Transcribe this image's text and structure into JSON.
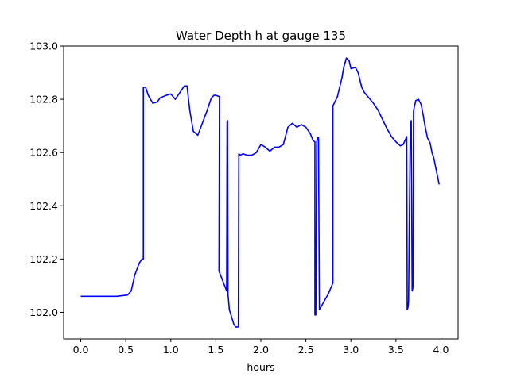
{
  "chart_data": {
    "type": "line",
    "title": "Water Depth h at gauge 135",
    "xlabel": "hours",
    "ylabel": "",
    "xlim": [
      -0.19,
      4.19
    ],
    "ylim": [
      101.9,
      103.0
    ],
    "grid": false,
    "x_ticks": [
      0.0,
      0.5,
      1.0,
      1.5,
      2.0,
      2.5,
      3.0,
      3.5,
      4.0
    ],
    "x_tick_labels": [
      "0.0",
      "0.5",
      "1.0",
      "1.5",
      "2.0",
      "2.5",
      "3.0",
      "3.5",
      "4.0"
    ],
    "y_ticks": [
      102.0,
      102.2,
      102.4,
      102.6,
      102.8,
      103.0
    ],
    "y_tick_labels": [
      "102.0",
      "102.2",
      "102.4",
      "102.6",
      "102.8",
      "103.0"
    ],
    "series": [
      {
        "color": "#0000ff",
        "x": [
          0.0,
          0.2,
          0.4,
          0.52,
          0.56,
          0.6,
          0.65,
          0.68,
          0.695,
          0.695,
          0.72,
          0.75,
          0.8,
          0.85,
          0.88,
          0.95,
          1.0,
          1.05,
          1.1,
          1.15,
          1.18,
          1.21,
          1.25,
          1.3,
          1.35,
          1.4,
          1.45,
          1.48,
          1.5,
          1.54,
          1.535,
          1.58,
          1.62,
          1.625,
          1.63,
          1.635,
          1.64,
          1.65,
          1.7,
          1.72,
          1.75,
          1.755,
          1.755,
          1.77,
          1.8,
          1.85,
          1.9,
          1.95,
          2.0,
          2.05,
          2.1,
          2.15,
          2.2,
          2.25,
          2.3,
          2.35,
          2.4,
          2.45,
          2.5,
          2.55,
          2.58,
          2.6,
          2.6,
          2.61,
          2.62,
          2.63,
          2.64,
          2.65,
          2.66,
          2.7,
          2.75,
          2.8,
          2.8,
          2.85,
          2.9,
          2.92,
          2.95,
          2.98,
          3.0,
          3.05,
          3.08,
          3.12,
          3.15,
          3.2,
          3.25,
          3.3,
          3.35,
          3.4,
          3.45,
          3.5,
          3.55,
          3.58,
          3.6,
          3.62,
          3.625,
          3.635,
          3.64,
          3.66,
          3.67,
          3.68,
          3.69,
          3.695,
          3.7,
          3.72,
          3.75,
          3.78,
          3.8,
          3.82,
          3.85,
          3.88,
          3.9,
          3.92,
          3.95,
          3.98
        ],
        "y": [
          102.06,
          102.06,
          102.06,
          102.065,
          102.08,
          102.14,
          102.185,
          102.2,
          102.2,
          102.845,
          102.845,
          102.815,
          102.785,
          102.79,
          102.805,
          102.815,
          102.82,
          102.8,
          102.825,
          102.85,
          102.85,
          102.76,
          102.68,
          102.665,
          102.71,
          102.755,
          102.805,
          102.815,
          102.815,
          102.81,
          102.155,
          102.115,
          102.08,
          102.715,
          102.72,
          102.065,
          102.05,
          102.01,
          101.955,
          101.945,
          101.945,
          102.595,
          102.595,
          102.59,
          102.595,
          102.59,
          102.59,
          102.6,
          102.63,
          102.62,
          102.605,
          102.62,
          102.62,
          102.63,
          102.695,
          102.71,
          102.695,
          102.705,
          102.695,
          102.67,
          102.645,
          102.64,
          101.99,
          101.99,
          102.64,
          102.655,
          102.655,
          102.01,
          102.015,
          102.04,
          102.07,
          102.11,
          102.775,
          102.81,
          102.88,
          102.92,
          102.955,
          102.945,
          102.915,
          102.92,
          102.9,
          102.845,
          102.825,
          102.805,
          102.785,
          102.76,
          102.725,
          102.69,
          102.66,
          102.64,
          102.625,
          102.63,
          102.645,
          102.66,
          102.01,
          102.02,
          102.04,
          102.71,
          102.72,
          102.08,
          102.095,
          102.755,
          102.765,
          102.795,
          102.8,
          102.78,
          102.745,
          102.705,
          102.655,
          102.635,
          102.6,
          102.58,
          102.53,
          102.48
        ]
      }
    ]
  }
}
